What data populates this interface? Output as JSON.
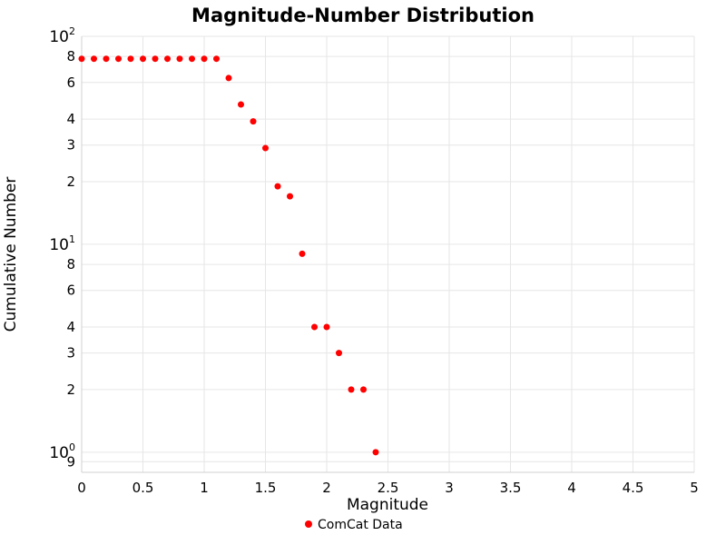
{
  "chart_data": {
    "type": "scatter",
    "title": "Magnitude-Number Distribution",
    "xlabel": "Magnitude",
    "ylabel": "Cumulative Number",
    "grid": true,
    "x_log": false,
    "y_log": true,
    "xlim": [
      0,
      5
    ],
    "ylim": [
      0.8,
      100
    ],
    "x_ticks": [
      0,
      0.5,
      1,
      1.5,
      2,
      2.5,
      3,
      3.5,
      4,
      4.5,
      5
    ],
    "x_tick_labels": [
      "0",
      "0.5",
      "1",
      "1.5",
      "2",
      "2.5",
      "3",
      "3.5",
      "4",
      "4.5",
      "5"
    ],
    "y_ticks": [
      {
        "value": 100,
        "base": "10",
        "exp": "2"
      },
      {
        "value": 80,
        "label": "8"
      },
      {
        "value": 60,
        "label": "6"
      },
      {
        "value": 40,
        "label": "4"
      },
      {
        "value": 30,
        "label": "3"
      },
      {
        "value": 20,
        "label": "2"
      },
      {
        "value": 10,
        "base": "10",
        "exp": "1"
      },
      {
        "value": 8,
        "label": "8"
      },
      {
        "value": 6,
        "label": "6"
      },
      {
        "value": 4,
        "label": "4"
      },
      {
        "value": 3,
        "label": "3"
      },
      {
        "value": 2,
        "label": "2"
      },
      {
        "value": 1,
        "base": "10",
        "exp": "0"
      },
      {
        "value": 0.9,
        "label": "9"
      }
    ],
    "legend": [
      {
        "name": "ComCat Data",
        "color": "#ff0000"
      }
    ],
    "legend_position": "bottom-center",
    "series": [
      {
        "name": "ComCat Data",
        "color": "#ff0000",
        "marker_size": 7,
        "x": [
          0,
          0.1,
          0.2,
          0.3,
          0.4,
          0.5,
          0.6,
          0.7,
          0.8,
          0.9,
          1.0,
          1.1,
          1.2,
          1.3,
          1.4,
          1.5,
          1.6,
          1.7,
          1.8,
          1.9,
          2.0,
          2.1,
          2.2,
          2.3,
          2.4
        ],
        "y": [
          78,
          78,
          78,
          78,
          78,
          78,
          78,
          78,
          78,
          78,
          78,
          78,
          63,
          47,
          39,
          29,
          19,
          17,
          9,
          4,
          4,
          3,
          2,
          2,
          1
        ]
      }
    ]
  }
}
